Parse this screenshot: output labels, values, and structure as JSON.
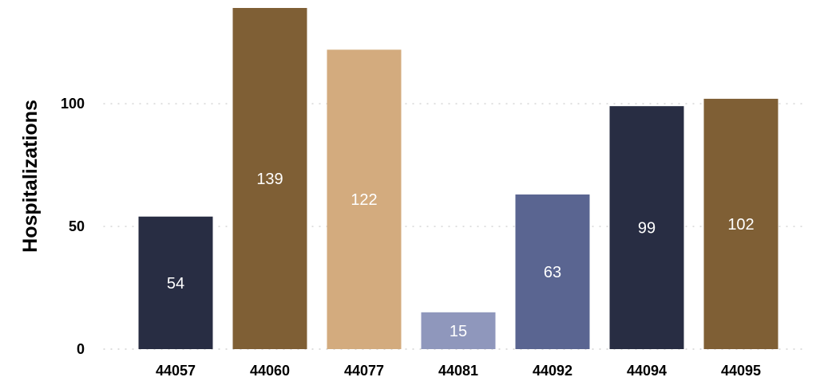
{
  "chart_data": {
    "type": "bar",
    "categories": [
      "44057",
      "44060",
      "44077",
      "44081",
      "44092",
      "44094",
      "44095"
    ],
    "values": [
      54,
      139,
      122,
      15,
      63,
      99,
      102
    ],
    "bar_colors": [
      "#282d43",
      "#7f5f35",
      "#d3ab7e",
      "#8f97bc",
      "#5a6591",
      "#282d43",
      "#7f5f35"
    ],
    "title": "",
    "xlabel": "",
    "ylabel": "Hospitalizations",
    "ylim": [
      0,
      139
    ],
    "yticks": [
      0,
      50,
      100
    ],
    "grid": "horizontal-dotted",
    "legend": "none"
  }
}
